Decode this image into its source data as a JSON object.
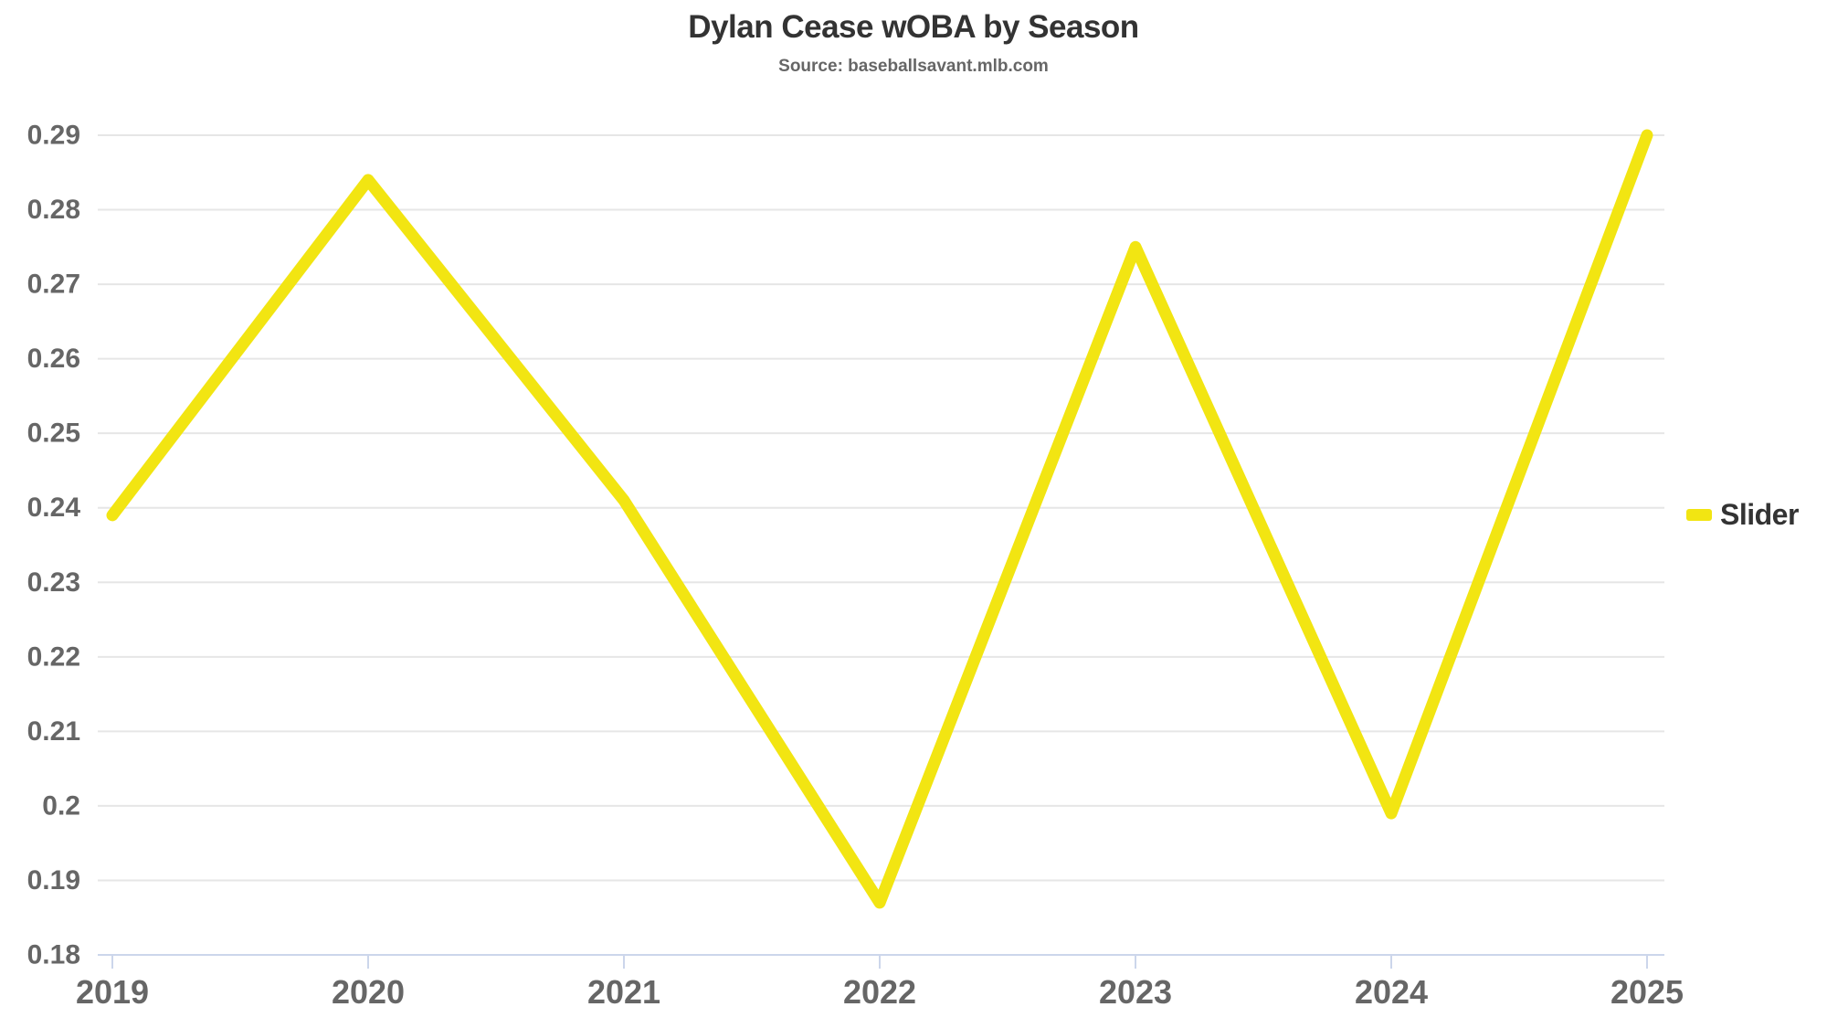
{
  "chart_data": {
    "type": "line",
    "title": "Dylan Cease wOBA by Season",
    "subtitle": "Source: baseballsavant.mlb.com",
    "categories": [
      "2019",
      "2020",
      "2021",
      "2022",
      "2023",
      "2024",
      "2025"
    ],
    "series": [
      {
        "name": "Slider",
        "color": "#f2e512",
        "values": [
          0.239,
          0.284,
          0.241,
          0.187,
          0.275,
          0.199,
          0.29
        ]
      }
    ],
    "xlabel": "",
    "ylabel": "",
    "ylim": [
      0.18,
      0.29
    ],
    "ytick_step": 0.01,
    "ytick_labels": [
      "0.18",
      "0.19",
      "0.2",
      "0.21",
      "0.22",
      "0.23",
      "0.24",
      "0.25",
      "0.26",
      "0.27",
      "0.28",
      "0.29"
    ],
    "grid": "horizontal",
    "legend_position": "right",
    "colors": {
      "grid_line": "#e6e6e6",
      "axis_line": "#ccd6eb",
      "tick_mark": "#ccd6eb",
      "axis_label": "#666666",
      "title": "#333333",
      "subtitle": "#666666",
      "legend_text": "#333333",
      "background": "#ffffff"
    }
  }
}
